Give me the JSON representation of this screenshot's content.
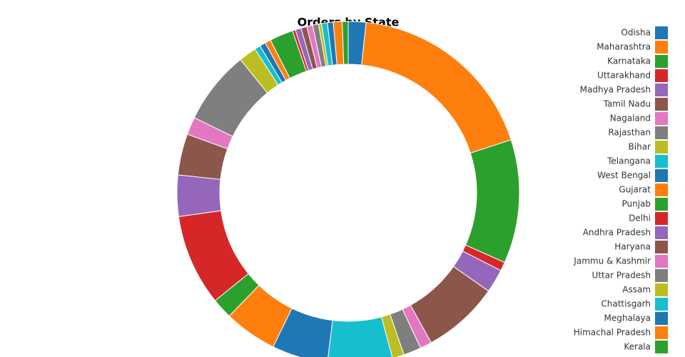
{
  "chart_data": {
    "type": "donut",
    "title": "Orders by State",
    "categories": [
      "Odisha",
      "Maharashtra",
      "Karnataka",
      "Uttarakhand",
      "Madhya Pradesh",
      "Tamil Nadu",
      "Nagaland",
      "Rajasthan",
      "Bihar",
      "Telangana",
      "West Bengal",
      "Gujarat",
      "Punjab",
      "Delhi",
      "Andhra Pradesh",
      "Haryana",
      "Jammu & Kashmir",
      "Uttar Pradesh",
      "Assam",
      "Chattisgarh",
      "Meghalaya",
      "Himachal Pradesh",
      "Kerala",
      null,
      null,
      null,
      null,
      null,
      null,
      null,
      null,
      null,
      null
    ],
    "values": [
      6,
      66,
      42,
      3,
      8,
      26,
      4,
      6,
      4,
      22,
      19,
      18,
      7,
      31,
      14,
      14,
      6,
      25,
      6,
      2,
      2,
      2,
      8,
      1,
      2,
      2,
      2,
      2,
      1,
      2,
      2,
      3,
      2
    ],
    "colors": [
      "#1f77b4",
      "#ff7f0e",
      "#2ca02c",
      "#d62728",
      "#9467bd",
      "#8c564b",
      "#e377c2",
      "#7f7f7f",
      "#bcbd22",
      "#17becf"
    ],
    "legend": "right"
  }
}
